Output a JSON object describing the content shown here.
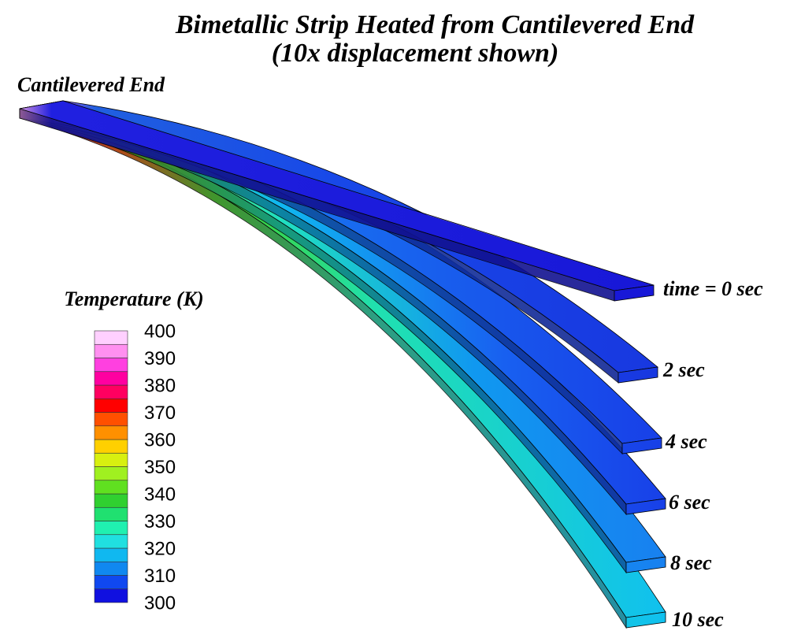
{
  "title": [
    "Bimetallic Strip Heated from Cantilevered End",
    "(10x displacement shown)"
  ],
  "fixed_end_label": "Cantilevered End",
  "colorbar": {
    "title": "Temperature (K)",
    "lim": [
      300,
      400
    ],
    "ticks": [
      400,
      390,
      380,
      370,
      360,
      350,
      340,
      330,
      320,
      310,
      300
    ],
    "colors": [
      "#1010e0",
      "#1048f0",
      "#1088f0",
      "#10b8f0",
      "#20e0e0",
      "#20f0b0",
      "#20e070",
      "#30d030",
      "#60e020",
      "#a0f020",
      "#d8f010",
      "#ffd000",
      "#ff9000",
      "#ff5000",
      "#ff0000",
      "#ff0060",
      "#ff00a0",
      "#ff40e0",
      "#ff90f0",
      "#ffd0ff"
    ]
  },
  "strips": [
    "time = 0 sec",
    "2 sec",
    "4 sec",
    "6 sec",
    "8 sec",
    "10 sec"
  ]
}
